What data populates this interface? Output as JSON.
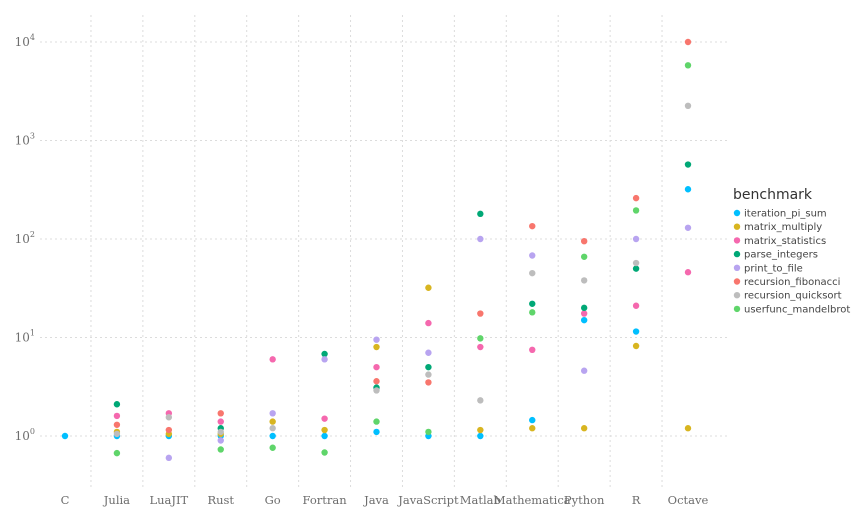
{
  "chart_data": {
    "type": "scatter",
    "y_scale": "log",
    "ylim": [
      0.3,
      16000
    ],
    "y_ticks": [
      {
        "value": 1,
        "base": "10",
        "exp": "0"
      },
      {
        "value": 10,
        "base": "10",
        "exp": "1"
      },
      {
        "value": 100,
        "base": "10",
        "exp": "2"
      },
      {
        "value": 1000,
        "base": "10",
        "exp": "3"
      },
      {
        "value": 10000,
        "base": "10",
        "exp": "4"
      }
    ],
    "categories": [
      "C",
      "Julia",
      "LuaJIT",
      "Rust",
      "Go",
      "Fortran",
      "Java",
      "JavaScript",
      "Matlab",
      "Mathematica",
      "Python",
      "R",
      "Octave"
    ],
    "grid": true,
    "legend": {
      "title": "benchmark",
      "position": "right"
    },
    "series": [
      {
        "name": "iteration_pi_sum",
        "color": "#00bfff",
        "values": [
          1.0,
          1.0,
          1.0,
          1.0,
          1.0,
          1.0,
          1.1,
          1.0,
          1.0,
          1.45,
          15,
          11.5,
          320
        ]
      },
      {
        "name": "matrix_multiply",
        "color": "#d8b520",
        "values": [
          null,
          1.1,
          1.05,
          1.05,
          1.4,
          1.15,
          8.0,
          32,
          1.15,
          1.2,
          1.2,
          8.2,
          1.2
        ]
      },
      {
        "name": "matrix_statistics",
        "color": "#f568ae",
        "values": [
          null,
          1.6,
          1.7,
          1.4,
          6.0,
          1.5,
          5.0,
          14,
          8.0,
          7.5,
          17.5,
          21,
          46
        ]
      },
      {
        "name": "parse_integers",
        "color": "#00a876",
        "values": [
          null,
          2.1,
          null,
          1.2,
          null,
          6.8,
          3.1,
          5.0,
          180,
          22,
          20,
          50,
          570
        ]
      },
      {
        "name": "print_to_file",
        "color": "#b8a4f0",
        "values": [
          null,
          null,
          0.6,
          0.9,
          1.7,
          6.0,
          9.5,
          7.0,
          100,
          68,
          4.6,
          100,
          130
        ]
      },
      {
        "name": "recursion_fibonacci",
        "color": "#f8766d",
        "values": [
          null,
          1.3,
          1.15,
          1.7,
          null,
          null,
          3.6,
          3.5,
          17.5,
          135,
          95,
          260,
          10000
        ]
      },
      {
        "name": "recursion_quicksort",
        "color": "#bdbdbd",
        "values": [
          null,
          1.05,
          1.55,
          1.1,
          1.2,
          null,
          2.9,
          4.2,
          2.3,
          45,
          38,
          57,
          2250
        ]
      },
      {
        "name": "userfunc_mandelbrot",
        "color": "#5fd56a",
        "values": [
          null,
          0.67,
          null,
          0.73,
          0.76,
          0.68,
          1.4,
          1.1,
          9.8,
          18,
          66,
          195,
          5800
        ]
      }
    ]
  }
}
